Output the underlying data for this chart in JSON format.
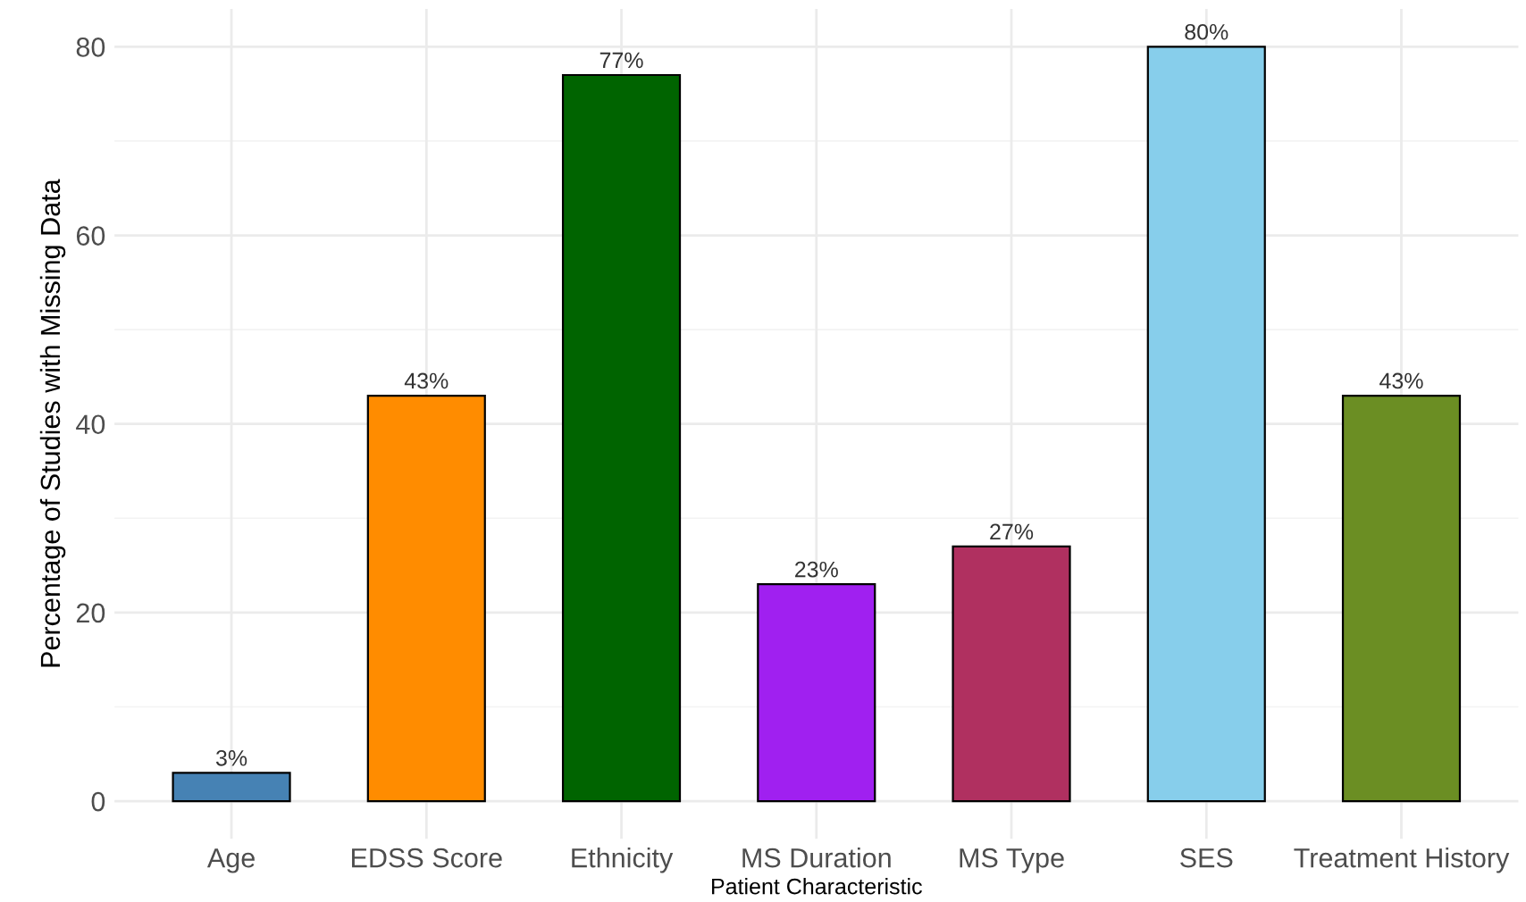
{
  "chart_data": {
    "type": "bar",
    "xlabel": "Patient Characteristic",
    "ylabel": "Percentage of Studies with Missing Data",
    "categories": [
      "Age",
      "EDSS Score",
      "Ethnicity",
      "MS Duration",
      "MS Type",
      "SES",
      "Treatment History"
    ],
    "values": [
      3,
      43,
      77,
      23,
      27,
      80,
      43
    ],
    "colors": [
      "#4682b4",
      "#ff8c00",
      "#006400",
      "#a020f0",
      "#b03060",
      "#87ceeb",
      "#6b8e23"
    ],
    "value_labels": [
      "3%",
      "43%",
      "77%",
      "23%",
      "27%",
      "80%",
      "43%"
    ],
    "ylim": [
      -4,
      84
    ],
    "yticks": [
      0,
      20,
      40,
      60,
      80
    ],
    "grid": true
  }
}
